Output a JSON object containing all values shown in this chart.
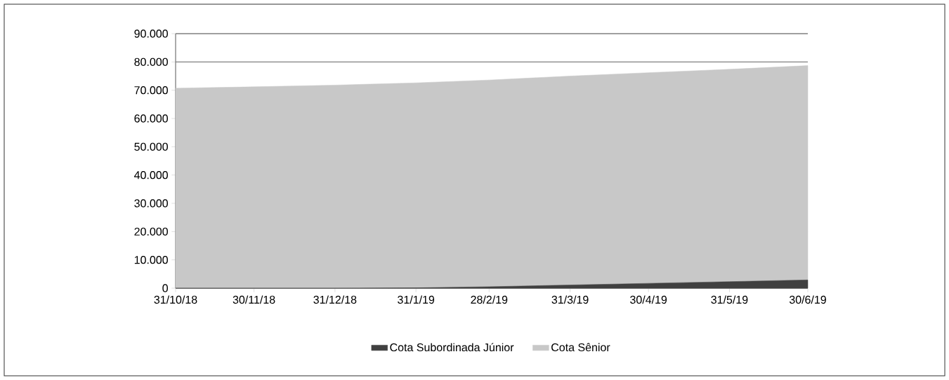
{
  "chart_data": {
    "type": "area",
    "stacked": true,
    "x": [
      "2018-10-31",
      "2018-11-30",
      "2018-12-31",
      "2019-01-31",
      "2019-02-28",
      "2019-03-31",
      "2019-04-30",
      "2019-05-31",
      "2019-06-30"
    ],
    "series": [
      {
        "name": "Cota Subordinada Júnior",
        "color": "#404040",
        "values": [
          0,
          0,
          0,
          100,
          500,
          1100,
          1700,
          2300,
          2900
        ]
      },
      {
        "name": "Cota Sênior",
        "color": "#c8c8c8",
        "values": [
          70700,
          71200,
          71800,
          72500,
          73100,
          73900,
          74500,
          75100,
          75800
        ]
      }
    ],
    "xlim": [
      "2018-10-31",
      "2019-06-30"
    ],
    "xticks": [
      {
        "value": "2018-10-31",
        "label": "31/10/18"
      },
      {
        "value": "2018-11-30",
        "label": "30/11/18"
      },
      {
        "value": "2018-12-31",
        "label": "31/12/18"
      },
      {
        "value": "2019-01-31",
        "label": "31/1/19"
      },
      {
        "value": "2019-02-28",
        "label": "28/2/19"
      },
      {
        "value": "2019-03-31",
        "label": "31/3/19"
      },
      {
        "value": "2019-04-30",
        "label": "30/4/19"
      },
      {
        "value": "2019-05-31",
        "label": "31/5/19"
      },
      {
        "value": "2019-06-30",
        "label": "30/6/19"
      }
    ],
    "ylim": [
      0,
      90000
    ],
    "yticks": [
      0,
      {
        "value": 10000,
        "label": "10.000"
      },
      {
        "value": 20000,
        "label": "20.000"
      },
      {
        "value": 30000,
        "label": "30.000"
      },
      {
        "value": 40000,
        "label": "40.000"
      },
      {
        "value": 50000,
        "label": "50.000"
      },
      {
        "value": 60000,
        "label": "60.000"
      },
      {
        "value": 70000,
        "label": "70.000"
      },
      {
        "value": 80000,
        "label": "80.000"
      },
      {
        "value": 90000,
        "label": "90.000"
      }
    ],
    "grid": "y",
    "legend": "bottom"
  }
}
